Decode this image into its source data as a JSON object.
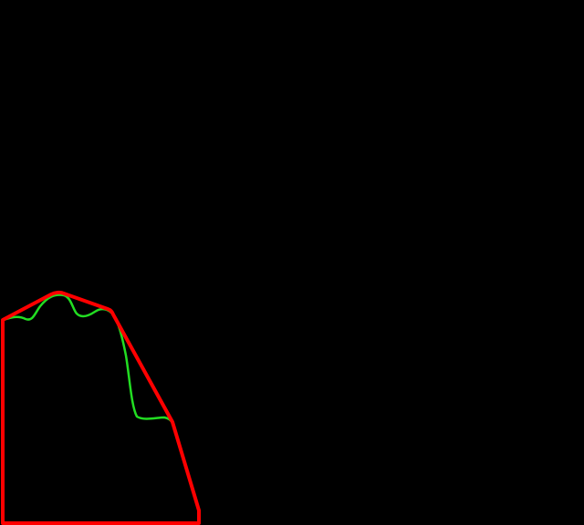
{
  "colors": {
    "background": "#000000",
    "hull_outline": "#ff0000",
    "curve": "#22dd22"
  }
}
